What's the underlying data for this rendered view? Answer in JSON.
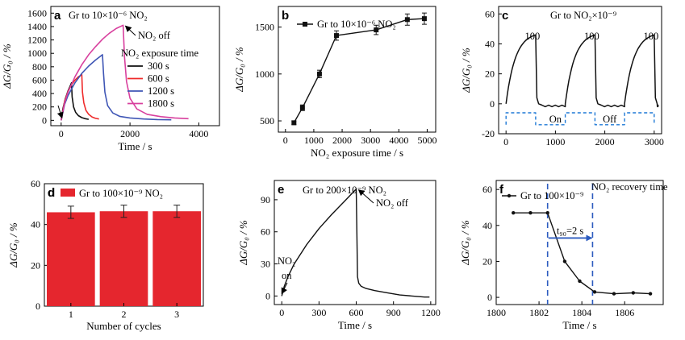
{
  "colors": {
    "black": "#111111",
    "red": "#ef2b2b",
    "blue": "#3f56b5",
    "magenta": "#d8409e",
    "dash_blue": "#1f79d6",
    "bar_red": "#e5262e"
  },
  "chart_data": [
    {
      "id": "a",
      "type": "line",
      "title": "Gr to 10×10⁻⁶ NO₂",
      "annotation": "NO₂ off",
      "legend_title": "NO₂ exposure time",
      "xlabel": "Time / s",
      "ylabel": "ΔG/G₀ / %",
      "xlim": [
        -300,
        4600
      ],
      "ylim": [
        -80,
        1700
      ],
      "xticks": [
        0,
        2000,
        4000
      ],
      "yticks": [
        0,
        200,
        400,
        600,
        800,
        1000,
        1200,
        1400,
        1600
      ],
      "series": [
        {
          "name": "300 s",
          "color": "#111111",
          "x": [
            0,
            50,
            120,
            200,
            260,
            300,
            320,
            360,
            420,
            500,
            600,
            700,
            800
          ],
          "y": [
            0,
            170,
            320,
            440,
            510,
            560,
            350,
            200,
            120,
            70,
            40,
            25,
            15
          ]
        },
        {
          "name": "600 s",
          "color": "#ef2b2b",
          "x": [
            0,
            100,
            200,
            300,
            400,
            500,
            600,
            620,
            660,
            720,
            800,
            900,
            1000,
            1100
          ],
          "y": [
            0,
            280,
            430,
            530,
            600,
            650,
            680,
            420,
            260,
            150,
            90,
            50,
            30,
            20
          ]
        },
        {
          "name": "1200 s",
          "color": "#3f56b5",
          "x": [
            0,
            100,
            200,
            400,
            600,
            800,
            1000,
            1200,
            1230,
            1270,
            1350,
            1500,
            1700,
            2000,
            2400,
            2800,
            3200
          ],
          "y": [
            0,
            240,
            370,
            560,
            700,
            810,
            900,
            980,
            700,
            420,
            220,
            110,
            60,
            35,
            20,
            12,
            8
          ]
        },
        {
          "name": "1800 s",
          "color": "#d8409e",
          "x": [
            0,
            100,
            200,
            400,
            600,
            800,
            1000,
            1200,
            1400,
            1600,
            1800,
            1840,
            1900,
            2000,
            2200,
            2500,
            2900,
            3300,
            3700
          ],
          "y": [
            0,
            260,
            420,
            650,
            830,
            980,
            1100,
            1210,
            1300,
            1370,
            1420,
            950,
            580,
            330,
            170,
            90,
            55,
            35,
            25
          ]
        }
      ]
    },
    {
      "id": "b",
      "type": "line",
      "legend": "Gr to 10×10⁻⁶ NO₂",
      "xlabel": "NO₂ exposure time / s",
      "ylabel": "ΔG/G₀ / %",
      "xlim": [
        -250,
        5300
      ],
      "ylim": [
        380,
        1720
      ],
      "xticks": [
        0,
        1000,
        2000,
        3000,
        4000,
        5000
      ],
      "yticks": [
        500,
        1000,
        1500
      ],
      "x": [
        300,
        600,
        1200,
        1800,
        3200,
        4300,
        4900
      ],
      "y": [
        480,
        640,
        1000,
        1410,
        1470,
        1580,
        1590
      ],
      "err": [
        20,
        30,
        40,
        50,
        50,
        60,
        60
      ]
    },
    {
      "id": "c",
      "type": "line",
      "title": "Gr to NO₂×10⁻⁹",
      "peak_labels": [
        "100",
        "100",
        "100"
      ],
      "on_label": "On",
      "off_label": "Off",
      "xlabel": "",
      "ylabel": "ΔG/G₀ / %",
      "xlim": [
        -150,
        3150
      ],
      "ylim": [
        -20,
        65
      ],
      "xticks": [
        0,
        1000,
        2000,
        3000
      ],
      "yticks": [
        -20,
        0,
        20,
        40,
        60
      ],
      "cycles": [
        [
          0,
          600
        ],
        [
          1200,
          1800
        ],
        [
          2400,
          3000
        ]
      ],
      "peak": 46,
      "baseline": -1.5,
      "gate_levels": [
        -6,
        -14
      ]
    },
    {
      "id": "d",
      "type": "bar",
      "legend": "Gr to 100×10⁻⁹ NO₂",
      "xlabel": "Number of cycles",
      "ylabel": "ΔG/G₀ / %",
      "categories": [
        "1",
        "2",
        "3"
      ],
      "values": [
        46,
        46.5,
        46.5
      ],
      "err": [
        3,
        3,
        3
      ],
      "ylim": [
        0,
        60
      ],
      "yticks": [
        0,
        20,
        40,
        60
      ]
    },
    {
      "id": "e",
      "type": "line",
      "title": "Gr to 200×10⁻⁹ NO₂",
      "annotation_off": "NO₂ off",
      "annotation_on": "on",
      "xlabel": "Time / s",
      "ylabel": "ΔG/G₀ / %",
      "xlim": [
        -60,
        1240
      ],
      "ylim": [
        -8,
        108
      ],
      "xticks": [
        0,
        300,
        600,
        900,
        1200
      ],
      "yticks": [
        0,
        30,
        60,
        90
      ],
      "x": [
        0,
        20,
        50,
        100,
        200,
        300,
        400,
        500,
        600,
        605,
        610,
        620,
        640,
        680,
        750,
        850,
        950,
        1050,
        1150,
        1190
      ],
      "y": [
        0,
        9,
        18,
        30,
        48,
        63,
        76,
        88,
        100,
        60,
        18,
        12,
        9,
        7,
        5,
        3,
        1,
        0,
        -1,
        -1
      ]
    },
    {
      "id": "f",
      "type": "line",
      "legend": "Gr to 100×10⁻⁹",
      "annotation": "NO₂ recovery time",
      "t90_label": "t₉₀=2 s",
      "xlabel": "Time / s",
      "ylabel": "ΔG/G₀ / %",
      "xlim": [
        1800,
        1807.8
      ],
      "ylim": [
        -4,
        65
      ],
      "xticks": [
        1800,
        1802,
        1804,
        1806
      ],
      "yticks": [
        0,
        20,
        40,
        60
      ],
      "x": [
        1800.8,
        1801.6,
        1802.4,
        1803.2,
        1803.9,
        1804.6,
        1805.5,
        1806.4,
        1807.2
      ],
      "y": [
        47,
        47,
        47,
        20,
        9,
        3,
        2,
        2.5,
        2
      ],
      "dash_x": [
        1802.4,
        1804.5
      ]
    }
  ]
}
